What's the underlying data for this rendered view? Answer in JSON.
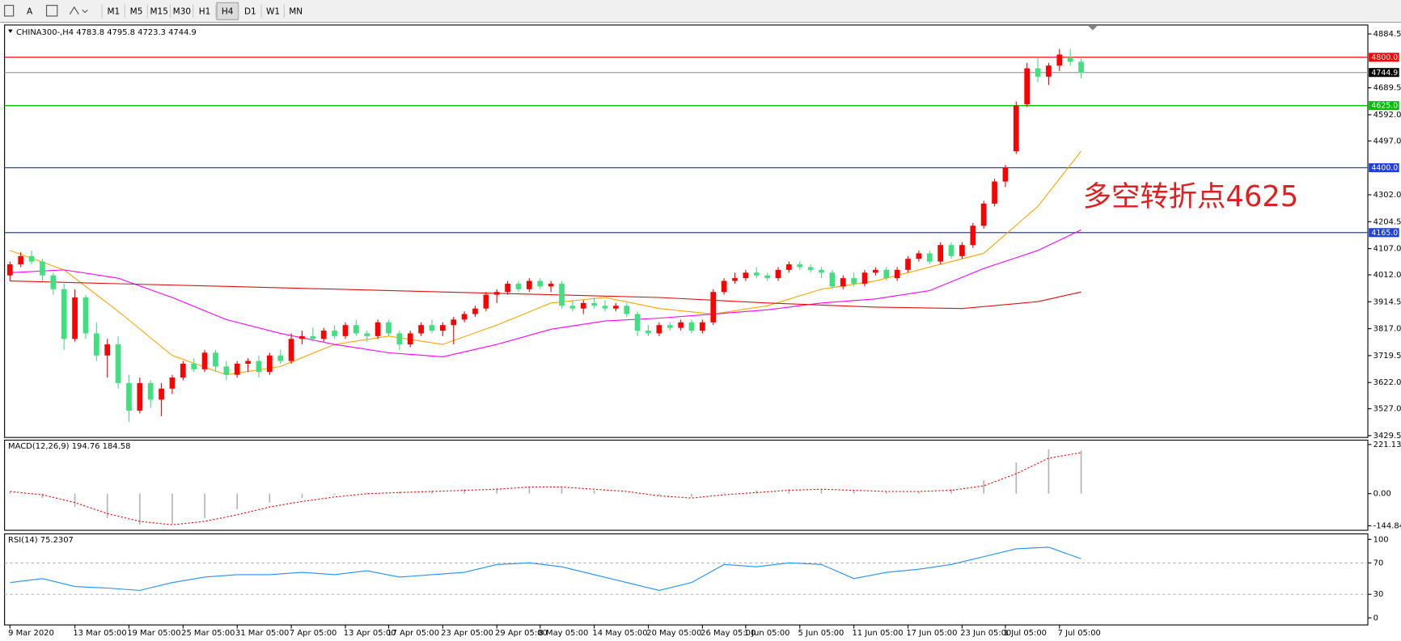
{
  "toolbar": {
    "text_tool": "A",
    "periods": [
      "M1",
      "M5",
      "M15",
      "M30",
      "H1",
      "H4",
      "D1",
      "W1",
      "MN"
    ],
    "active_period": 5
  },
  "chart_data": [
    {
      "type": "candlestick",
      "title": "CHINA300-,H4",
      "up_color": "#ff0000",
      "down_color": "#40e080",
      "ohlc": [
        [
          4010,
          4060,
          3990,
          4050
        ],
        [
          4050,
          4095,
          4040,
          4080
        ],
        [
          4080,
          4100,
          4050,
          4060
        ],
        [
          4060,
          4070,
          3990,
          4010
        ],
        [
          4010,
          4020,
          3940,
          3960
        ],
        [
          3960,
          3980,
          3740,
          3780
        ],
        [
          3780,
          3960,
          3770,
          3930
        ],
        [
          3930,
          3940,
          3780,
          3800
        ],
        [
          3800,
          3840,
          3700,
          3720
        ],
        [
          3720,
          3780,
          3640,
          3760
        ],
        [
          3760,
          3790,
          3600,
          3620
        ],
        [
          3620,
          3650,
          3480,
          3520
        ],
        [
          3520,
          3640,
          3510,
          3620
        ],
        [
          3620,
          3630,
          3530,
          3560
        ],
        [
          3560,
          3620,
          3500,
          3600
        ],
        [
          3600,
          3650,
          3580,
          3640
        ],
        [
          3640,
          3700,
          3630,
          3690
        ],
        [
          3690,
          3710,
          3660,
          3670
        ],
        [
          3670,
          3740,
          3660,
          3730
        ],
        [
          3730,
          3740,
          3660,
          3680
        ],
        [
          3680,
          3700,
          3630,
          3650
        ],
        [
          3650,
          3700,
          3640,
          3690
        ],
        [
          3690,
          3710,
          3660,
          3700
        ],
        [
          3700,
          3720,
          3640,
          3660
        ],
        [
          3660,
          3730,
          3650,
          3720
        ],
        [
          3720,
          3740,
          3690,
          3700
        ],
        [
          3700,
          3800,
          3690,
          3780
        ],
        [
          3780,
          3810,
          3760,
          3790
        ],
        [
          3790,
          3820,
          3770,
          3780
        ],
        [
          3780,
          3820,
          3770,
          3810
        ],
        [
          3810,
          3830,
          3780,
          3790
        ],
        [
          3790,
          3840,
          3780,
          3830
        ],
        [
          3830,
          3850,
          3790,
          3800
        ],
        [
          3800,
          3810,
          3770,
          3790
        ],
        [
          3790,
          3850,
          3780,
          3840
        ],
        [
          3840,
          3850,
          3790,
          3800
        ],
        [
          3800,
          3810,
          3740,
          3760
        ],
        [
          3760,
          3810,
          3750,
          3800
        ],
        [
          3800,
          3840,
          3790,
          3830
        ],
        [
          3830,
          3850,
          3800,
          3810
        ],
        [
          3810,
          3840,
          3790,
          3830
        ],
        [
          3830,
          3860,
          3760,
          3850
        ],
        [
          3850,
          3880,
          3840,
          3870
        ],
        [
          3870,
          3900,
          3860,
          3890
        ],
        [
          3890,
          3950,
          3880,
          3940
        ],
        [
          3940,
          3960,
          3910,
          3950
        ],
        [
          3950,
          3990,
          3940,
          3980
        ],
        [
          3980,
          3990,
          3950,
          3960
        ],
        [
          3960,
          4000,
          3950,
          3990
        ],
        [
          3990,
          4000,
          3960,
          3970
        ],
        [
          3970,
          3990,
          3950,
          3980
        ],
        [
          3980,
          3990,
          3890,
          3900
        ],
        [
          3900,
          3920,
          3880,
          3890
        ],
        [
          3890,
          3920,
          3870,
          3910
        ],
        [
          3910,
          3930,
          3890,
          3900
        ],
        [
          3900,
          3920,
          3880,
          3890
        ],
        [
          3890,
          3910,
          3880,
          3900
        ],
        [
          3900,
          3910,
          3860,
          3870
        ],
        [
          3870,
          3880,
          3790,
          3810
        ],
        [
          3810,
          3830,
          3790,
          3800
        ],
        [
          3800,
          3840,
          3790,
          3830
        ],
        [
          3830,
          3840,
          3810,
          3820
        ],
        [
          3820,
          3850,
          3810,
          3840
        ],
        [
          3840,
          3850,
          3800,
          3810
        ],
        [
          3810,
          3850,
          3800,
          3840
        ],
        [
          3840,
          3960,
          3830,
          3950
        ],
        [
          3950,
          4000,
          3940,
          3990
        ],
        [
          3990,
          4020,
          3980,
          4000
        ],
        [
          4000,
          4030,
          3990,
          4020
        ],
        [
          4020,
          4040,
          4000,
          4010
        ],
        [
          4010,
          4020,
          3990,
          4000
        ],
        [
          4000,
          4040,
          3990,
          4030
        ],
        [
          4030,
          4060,
          4020,
          4050
        ],
        [
          4050,
          4060,
          4030,
          4040
        ],
        [
          4040,
          4050,
          4020,
          4030
        ],
        [
          4030,
          4040,
          4000,
          4020
        ],
        [
          4020,
          4030,
          3960,
          3970
        ],
        [
          3970,
          4010,
          3960,
          4000
        ],
        [
          4000,
          4020,
          3970,
          3980
        ],
        [
          3980,
          4030,
          3970,
          4020
        ],
        [
          4020,
          4040,
          4010,
          4030
        ],
        [
          4030,
          4040,
          3990,
          4000
        ],
        [
          4000,
          4040,
          3990,
          4030
        ],
        [
          4030,
          4080,
          4020,
          4070
        ],
        [
          4070,
          4100,
          4060,
          4090
        ],
        [
          4090,
          4100,
          4050,
          4060
        ],
        [
          4060,
          4130,
          4050,
          4120
        ],
        [
          4120,
          4130,
          4070,
          4080
        ],
        [
          4080,
          4130,
          4070,
          4120
        ],
        [
          4120,
          4200,
          4110,
          4190
        ],
        [
          4190,
          4280,
          4180,
          4270
        ],
        [
          4270,
          4360,
          4260,
          4350
        ],
        [
          4350,
          4410,
          4330,
          4400
        ],
        [
          4460,
          4640,
          4450,
          4625
        ],
        [
          4630,
          4780,
          4620,
          4760
        ],
        [
          4760,
          4800,
          4710,
          4730
        ],
        [
          4730,
          4780,
          4700,
          4770
        ],
        [
          4770,
          4830,
          4750,
          4810
        ],
        [
          4800,
          4830,
          4770,
          4783.8
        ],
        [
          4783.8,
          4795.8,
          4723.3,
          4744.9
        ]
      ],
      "series": [
        {
          "color": "#ffa500",
          "x": [
            0,
            5,
            10,
            15,
            20,
            25,
            30,
            35,
            40,
            45,
            50,
            55,
            60,
            65,
            70,
            75,
            80,
            85,
            90,
            95,
            99
          ],
          "values": [
            4100,
            4030,
            3880,
            3720,
            3650,
            3680,
            3760,
            3790,
            3760,
            3830,
            3910,
            3930,
            3890,
            3870,
            3900,
            3960,
            3990,
            4040,
            4090,
            4260,
            4460
          ]
        },
        {
          "color": "#ff00ff",
          "x": [
            0,
            5,
            10,
            15,
            20,
            25,
            30,
            35,
            40,
            45,
            50,
            55,
            60,
            65,
            70,
            75,
            80,
            85,
            90,
            95,
            99
          ],
          "values": [
            4020,
            4030,
            4000,
            3930,
            3850,
            3800,
            3760,
            3730,
            3715,
            3760,
            3815,
            3845,
            3855,
            3870,
            3885,
            3910,
            3925,
            3955,
            4035,
            4100,
            4175
          ]
        },
        {
          "color": "#e01010",
          "x": [
            0,
            10,
            20,
            30,
            40,
            50,
            60,
            70,
            80,
            88,
            95,
            99
          ],
          "values": [
            3990,
            3980,
            3970,
            3960,
            3950,
            3940,
            3930,
            3910,
            3895,
            3890,
            3915,
            3950
          ]
        }
      ],
      "levels": [
        {
          "value": 4800,
          "label": "4800.0",
          "color": "#ff0000",
          "tag_color": "#ff0000"
        },
        {
          "value": 4744.9,
          "color": "#a8a8a8",
          "tag_color": "#000000"
        },
        {
          "value": 4625,
          "label": "4625.0",
          "color": "#00c000",
          "tag_color": "#00c000"
        },
        {
          "value": 4400,
          "label": "4400.0",
          "color": "#2040e0",
          "tag_color": "#2040e0"
        },
        {
          "value": 4165,
          "label": "4165.0",
          "color": "#2040e0",
          "tag_color": "#2040e0"
        }
      ],
      "annotation": "多空转折点4625",
      "xlim": [
        -0.5,
        125.5
      ],
      "xticks": [
        {
          "value": 0,
          "label": "9 Mar 2020"
        },
        {
          "value": 6,
          "label": "13 Mar 05:00"
        },
        {
          "value": 11,
          "label": "19 Mar 05:00"
        },
        {
          "value": 16,
          "label": "25 Mar 05:00"
        },
        {
          "value": 21,
          "label": "31 Mar 05:00"
        },
        {
          "value": 26,
          "label": "7 Apr 05:00"
        },
        {
          "value": 31,
          "label": "13 Apr 05:00"
        },
        {
          "value": 35,
          "label": "17 Apr 05:00"
        },
        {
          "value": 40,
          "label": "23 Apr 05:00"
        },
        {
          "value": 45,
          "label": "29 Apr 05:00"
        },
        {
          "value": 49,
          "label": "8 May 05:00"
        },
        {
          "value": 54,
          "label": "14 May 05:00"
        },
        {
          "value": 59,
          "label": "20 May 05:00"
        },
        {
          "value": 64,
          "label": "26 May 05:00"
        },
        {
          "value": 68,
          "label": "1 Jun 05:00"
        },
        {
          "value": 73,
          "label": "5 Jun 05:00"
        },
        {
          "value": 78,
          "label": "11 Jun 05:00"
        },
        {
          "value": 83,
          "label": "17 Jun 05:00"
        },
        {
          "value": 88,
          "label": "23 Jun 05:00"
        },
        {
          "value": 92,
          "label": "1 Jul 05:00"
        },
        {
          "value": 97,
          "label": "7 Jul 05:00"
        }
      ],
      "ylim": [
        3423,
        4917
      ],
      "yticks": [
        4884.5,
        {
          "value": 4689.5,
          "label": "4689.5"
        },
        {
          "value": 4592,
          "label": "4592.0"
        },
        {
          "value": 4497,
          "label": "4497.0"
        },
        {
          "value": 4302,
          "label": "4302.0"
        },
        4204.5,
        {
          "value": 4107,
          "label": "4107.0"
        },
        {
          "value": 4012,
          "label": "4012.0"
        },
        3914.5,
        {
          "value": 3817,
          "label": "3817.0"
        },
        3719.5,
        {
          "value": 3622,
          "label": "3622.0"
        },
        {
          "value": 3527,
          "label": "3527.0"
        },
        3429.5
      ]
    },
    {
      "type": "macd",
      "title": "MACD(12,26,9)",
      "x": [
        0,
        3,
        6,
        9,
        12,
        15,
        18,
        21,
        24,
        27,
        30,
        33,
        36,
        39,
        42,
        45,
        48,
        51,
        54,
        57,
        60,
        63,
        66,
        69,
        72,
        75,
        78,
        81,
        84,
        87,
        90,
        93,
        96,
        99
      ],
      "series": [
        {
          "kind": "bar",
          "color": "#b4b4b4",
          "values": [
            10,
            -20,
            -60,
            -110,
            -140,
            -135,
            -110,
            -70,
            -40,
            -20,
            -5,
            5,
            10,
            15,
            20,
            25,
            30,
            25,
            15,
            0,
            -10,
            -15,
            5,
            15,
            20,
            20,
            15,
            10,
            10,
            20,
            60,
            140,
            200,
            194.76
          ]
        },
        {
          "kind": "line",
          "color": "#ff0000",
          "values": [
            10,
            -5,
            -40,
            -90,
            -125,
            -140,
            -125,
            -95,
            -60,
            -35,
            -15,
            0,
            5,
            10,
            15,
            20,
            30,
            30,
            20,
            10,
            -10,
            -20,
            -5,
            5,
            15,
            20,
            15,
            10,
            10,
            15,
            35,
            90,
            160,
            184.58
          ]
        }
      ],
      "ylim": [
        -165,
        241
      ],
      "yticks": [
        221.13,
        {
          "value": 0,
          "label": "0.00"
        },
        -144.84
      ]
    },
    {
      "type": "rsi",
      "title": "RSI(14)",
      "x": [
        0,
        3,
        6,
        9,
        12,
        15,
        18,
        21,
        24,
        27,
        30,
        33,
        36,
        39,
        42,
        45,
        48,
        51,
        54,
        57,
        60,
        63,
        66,
        69,
        72,
        75,
        78,
        81,
        84,
        87,
        90,
        93,
        96,
        99
      ],
      "series": [
        {
          "color": "#1e90ff",
          "values": [
            45,
            50,
            40,
            38,
            35,
            45,
            52,
            55,
            55,
            58,
            55,
            60,
            52,
            55,
            58,
            68,
            70,
            65,
            55,
            45,
            35,
            45,
            68,
            65,
            70,
            68,
            50,
            58,
            62,
            68,
            78,
            88,
            90,
            75.2307
          ]
        }
      ],
      "levels": [
        70,
        30
      ],
      "ylim": [
        -9,
        107
      ],
      "yticks": [
        100,
        70,
        30,
        0
      ]
    }
  ]
}
